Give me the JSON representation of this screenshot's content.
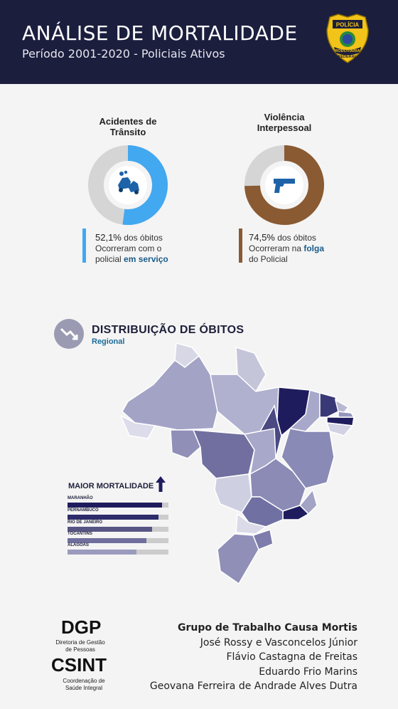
{
  "header": {
    "title": "ANÁLISE DE MORTALIDADE",
    "subtitle": "Período 2001-2020 - Policiais Ativos",
    "badge_lines": [
      "POLÍCIA",
      "RODOVIÁRIA",
      "FEDERAL"
    ]
  },
  "donuts": [
    {
      "title_line1": "Acidentes de",
      "title_line2": "Trânsito",
      "percent": 52.1,
      "color": "#42a8f0",
      "icon": "car-crash-icon",
      "stat_pct": "52,1%",
      "stat_rest": " dos óbitos",
      "stat_line2": "Ocorreram com o",
      "stat_line3_pre": "policial ",
      "stat_line3_bold": "em serviço"
    },
    {
      "title_line1": "Violência",
      "title_line2": "Interpessoal",
      "percent": 74.5,
      "color": "#8a5a32",
      "icon": "pistol-icon",
      "stat_pct": "74,5%",
      "stat_rest": " dos óbitos",
      "stat_line2_pre": "Ocorreram na ",
      "stat_line2_bold": "folga",
      "stat_line3": "do Policial"
    }
  ],
  "section": {
    "title": "DISTRIBUIÇÃO DE ÓBITOS",
    "subtitle": "Regional",
    "icon": "trend-down-icon"
  },
  "legend": {
    "title": "MAIOR MORTALIDADE",
    "icon": "arrow-up-icon",
    "ranking": [
      {
        "label": "MARANHÃO",
        "level": 0.94,
        "color": "#1f1c5e"
      },
      {
        "label": "PERNAMBUCO",
        "level": 0.9,
        "color": "#2e2c6a"
      },
      {
        "label": "RIO DE JANEIRO",
        "level": 0.84,
        "color": "#565584"
      },
      {
        "label": "TOCANTINS",
        "level": 0.78,
        "color": "#6f6e9c"
      },
      {
        "label": "ALAGOAS",
        "level": 0.68,
        "color": "#9b9bbe"
      }
    ]
  },
  "footer": {
    "dgp": "DGP",
    "dgp_sub": "Diretoria de Gestão de Pessoas",
    "csint": "CSINT",
    "csint_sub": "Coordenação de Saúde Integral",
    "credits_title": "Grupo de Trabalho Causa Mortis",
    "credits": [
      "José Rossy e Vasconcelos Júnior",
      "Flávio Castagna de Freitas",
      "Eduardo Frio Marins",
      "Geovana Ferreira de Andrade Alves Dutra"
    ]
  }
}
